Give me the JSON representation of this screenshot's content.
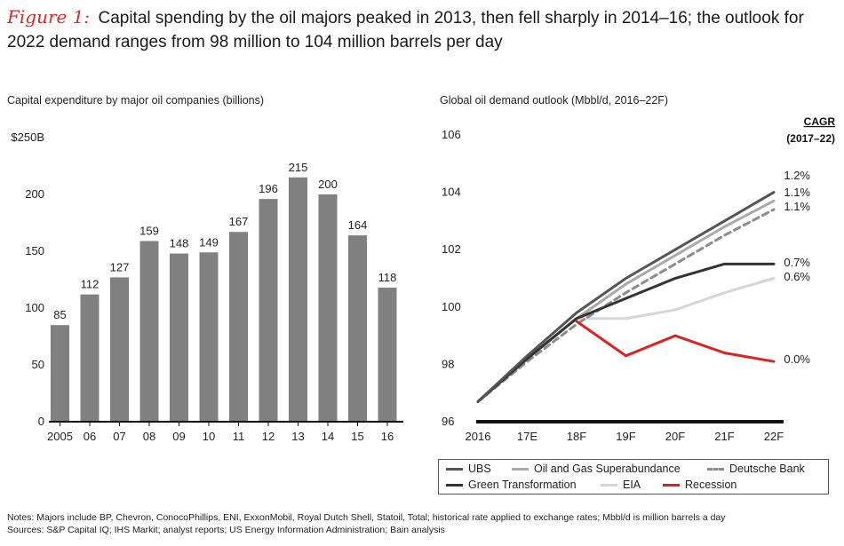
{
  "figure": {
    "label": "Figure 1:",
    "title": "Capital spending by the oil majors peaked in 2013, then fell sharply in 2014–16; the outlook for 2022 demand ranges from 98 million to 104 million barrels per day"
  },
  "notes": {
    "line1": "Notes: Majors include BP, Chevron, ConocoPhillips, ENI, ExxonMobil, Royal Dutch Shell, Statoil, Total; historical rate applied to exchange rates; Mbbl/d is million barrels a day",
    "line2": "Sources: S&P Capital IQ; IHS Markit; analyst reports; US Energy Information Administration; Bain analysis"
  },
  "colors": {
    "bar": "#808080",
    "axis": "#111111",
    "ubs": "#555555",
    "superabundance": "#a9a9a9",
    "deutsche": "#8c8c8c",
    "green": "#333333",
    "eia": "#d6d6d6",
    "recession": "#e02020"
  },
  "chart_data": [
    {
      "type": "bar",
      "title": "Capital expenditure by major oil companies (billions)",
      "xlabel": "",
      "ylabel": "",
      "categories": [
        "2005",
        "06",
        "07",
        "08",
        "09",
        "10",
        "11",
        "12",
        "13",
        "14",
        "15",
        "16"
      ],
      "values": [
        85,
        112,
        127,
        159,
        148,
        149,
        167,
        196,
        215,
        200,
        164,
        118
      ],
      "ylim": [
        0,
        250
      ],
      "yticks": [
        0,
        50,
        100,
        150,
        200,
        250
      ],
      "ytick_labels": [
        "0",
        "50",
        "100",
        "150",
        "200",
        "$250B"
      ],
      "grid": false
    },
    {
      "type": "line",
      "title": "Global oil demand outlook (Mbbl/d, 2016–22F)",
      "cagr_header": "CAGR",
      "cagr_period": "(2017–22)",
      "x": [
        "2016",
        "17E",
        "18F",
        "19F",
        "20F",
        "21F",
        "22F"
      ],
      "ylim": [
        96,
        106
      ],
      "yticks": [
        96,
        98,
        100,
        102,
        104,
        106
      ],
      "grid": false,
      "legend_position": "bottom",
      "series": [
        {
          "name": "UBS",
          "style": "solid",
          "color_key": "ubs",
          "values": [
            96.7,
            98.3,
            99.8,
            101.0,
            102.0,
            103.0,
            104.0
          ],
          "cagr": "1.2%"
        },
        {
          "name": "Oil and Gas Superabundance",
          "style": "solid",
          "color_key": "superabundance",
          "values": [
            96.7,
            98.2,
            99.6,
            100.8,
            101.8,
            102.8,
            103.7
          ],
          "cagr": "1.1%"
        },
        {
          "name": "Deutsche Bank",
          "style": "dashed",
          "color_key": "deutsche",
          "values": [
            96.7,
            98.1,
            99.4,
            100.5,
            101.5,
            102.5,
            103.4
          ],
          "cagr": "1.1%"
        },
        {
          "name": "Green Transformation",
          "style": "solid",
          "color_key": "green",
          "values": [
            96.7,
            98.2,
            99.6,
            100.3,
            101.0,
            101.5,
            101.5
          ],
          "cagr": "0.7%"
        },
        {
          "name": "EIA",
          "style": "solid",
          "color_key": "eia",
          "values": [
            96.7,
            98.2,
            99.6,
            99.6,
            99.9,
            100.5,
            101.0
          ],
          "cagr": "0.6%"
        },
        {
          "name": "Recession",
          "style": "solid",
          "color_key": "recession",
          "x_start_index": 2,
          "values": [
            null,
            null,
            99.5,
            98.3,
            99.0,
            98.4,
            98.1
          ],
          "cagr": "0.0%"
        }
      ]
    }
  ]
}
